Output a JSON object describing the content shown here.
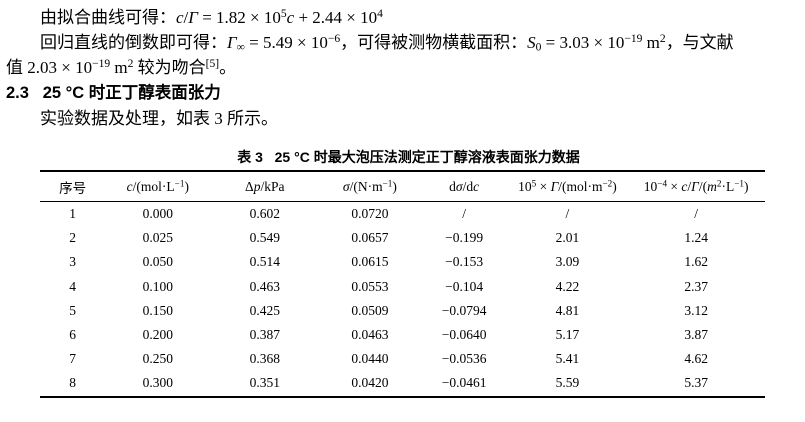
{
  "colors": {
    "text": "#000000",
    "background": "#ffffff"
  },
  "content": {
    "lines": [
      {
        "segments": [
          {
            "t": "由拟合曲线可得："
          },
          {
            "t": "c",
            "i": true
          },
          {
            "t": "/"
          },
          {
            "t": "Γ",
            "i": true
          },
          {
            "t": " = 1.82 × 10"
          },
          {
            "t": "5",
            "sup": true
          },
          {
            "t": "c",
            "i": true
          },
          {
            "t": " + 2.44 × 10"
          },
          {
            "t": "4",
            "sup": true
          }
        ]
      },
      {
        "segments": [
          {
            "t": "回归直线的倒数即可得："
          },
          {
            "t": "Γ",
            "i": true
          },
          {
            "t": "∞",
            "sb": true
          },
          {
            "t": " = 5.49 × 10"
          },
          {
            "t": "−6",
            "sup": true
          },
          {
            "t": "，可得被测物横截面积："
          },
          {
            "t": "S",
            "i": true
          },
          {
            "t": "0",
            "sb": true
          },
          {
            "t": " = 3.03 × 10"
          },
          {
            "t": "−19",
            "sup": true
          },
          {
            "t": " m"
          },
          {
            "t": "2",
            "sup": true
          },
          {
            "t": "，与文献"
          }
        ]
      },
      {
        "segments": [
          {
            "t": "值 2.03 × 10"
          },
          {
            "t": "−19",
            "sup": true
          },
          {
            "t": " m"
          },
          {
            "t": "2",
            "sup": true
          },
          {
            "t": " 较为吻合"
          },
          {
            "t": "[5]",
            "sup": true
          },
          {
            "t": "。"
          }
        ]
      },
      {
        "segments": [
          {
            "t": "2.3   25 °C 时正丁醇表面张力"
          }
        ]
      },
      {
        "segments": [
          {
            "t": "实验数据及处理，如表 3 所示。"
          }
        ]
      }
    ]
  },
  "table": {
    "title_segments": [
      {
        "t": "表 3   25 °C 时最大泡压法测定正丁醇溶液表面张力数据"
      }
    ],
    "columns": [
      {
        "segments": [
          {
            "t": "序号"
          }
        ]
      },
      {
        "segments": [
          {
            "t": "c",
            "i": true
          },
          {
            "t": "/(mol·L"
          },
          {
            "t": "−1",
            "sup": true
          },
          {
            "t": ")"
          }
        ]
      },
      {
        "segments": [
          {
            "t": "Δ"
          },
          {
            "t": "p",
            "i": true
          },
          {
            "t": "/kPa"
          }
        ]
      },
      {
        "segments": [
          {
            "t": "σ",
            "i": true
          },
          {
            "t": "/(N·m"
          },
          {
            "t": "−1",
            "sup": true
          },
          {
            "t": ")"
          }
        ]
      },
      {
        "segments": [
          {
            "t": "d"
          },
          {
            "t": "σ",
            "i": true
          },
          {
            "t": "/d"
          },
          {
            "t": "c",
            "i": true
          }
        ]
      },
      {
        "segments": [
          {
            "t": "10"
          },
          {
            "t": "5",
            "sup": true
          },
          {
            "t": " × "
          },
          {
            "t": "Γ",
            "i": true
          },
          {
            "t": "/(mol·m"
          },
          {
            "t": "−2",
            "sup": true
          },
          {
            "t": ")"
          }
        ]
      },
      {
        "segments": [
          {
            "t": "10"
          },
          {
            "t": "−4",
            "sup": true
          },
          {
            "t": " × "
          },
          {
            "t": "c",
            "i": true
          },
          {
            "t": "/"
          },
          {
            "t": "Γ",
            "i": true
          },
          {
            "t": "/("
          },
          {
            "t": "m",
            "i": true
          },
          {
            "t": "2",
            "sup": true
          },
          {
            "t": "·L"
          },
          {
            "t": "−1",
            "sup": true
          },
          {
            "t": ")"
          }
        ]
      }
    ],
    "column_widths": [
      "9%",
      "14.5%",
      "15%",
      "14%",
      "12%",
      "16.5%",
      "19%"
    ],
    "rows": [
      [
        "1",
        "0.000",
        "0.602",
        "0.0720",
        "/",
        "/",
        "/"
      ],
      [
        "2",
        "0.025",
        "0.549",
        "0.0657",
        "−0.199",
        "2.01",
        "1.24"
      ],
      [
        "3",
        "0.050",
        "0.514",
        "0.0615",
        "−0.153",
        "3.09",
        "1.62"
      ],
      [
        "4",
        "0.100",
        "0.463",
        "0.0553",
        "−0.104",
        "4.22",
        "2.37"
      ],
      [
        "5",
        "0.150",
        "0.425",
        "0.0509",
        "−0.0794",
        "4.81",
        "3.12"
      ],
      [
        "6",
        "0.200",
        "0.387",
        "0.0463",
        "−0.0640",
        "5.17",
        "3.87"
      ],
      [
        "7",
        "0.250",
        "0.368",
        "0.0440",
        "−0.0536",
        "5.41",
        "4.62"
      ],
      [
        "8",
        "0.300",
        "0.351",
        "0.0420",
        "−0.0461",
        "5.59",
        "5.37"
      ]
    ]
  }
}
